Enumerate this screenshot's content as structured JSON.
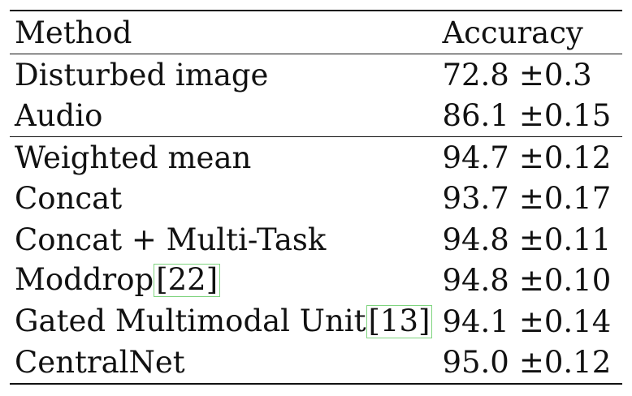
{
  "table": {
    "headers": {
      "method": "Method",
      "accuracy": "Accuracy"
    },
    "groups": [
      {
        "rows": [
          {
            "method": "Disturbed image",
            "citation": "",
            "mean": "72.8",
            "std": "±0.3",
            "bold": false
          },
          {
            "method": "Audio",
            "citation": "",
            "mean": "86.1",
            "std": "±0.15",
            "bold": false
          }
        ]
      },
      {
        "rows": [
          {
            "method": "Weighted mean",
            "citation": "",
            "mean": "94.7",
            "std": "±0.12",
            "bold": false
          },
          {
            "method": "Concat",
            "citation": "",
            "mean": "93.7",
            "std": "±0.17",
            "bold": false
          },
          {
            "method": "Concat + Multi-Task",
            "citation": "",
            "mean": "94.8",
            "std": "±0.11",
            "bold": false
          },
          {
            "method": "Moddrop",
            "citation": "[22]",
            "mean": "94.8",
            "std": "±0.10",
            "bold": false
          },
          {
            "method": "Gated Multimodal Unit",
            "citation": "[13]",
            "mean": "94.1",
            "std": "±0.14",
            "bold": false
          },
          {
            "method": "CentralNet",
            "citation": "",
            "mean": "95.0",
            "std": "±0.12",
            "bold": true
          }
        ]
      }
    ],
    "colors": {
      "rule": "#111111",
      "citation_box": "#7fd47f"
    }
  }
}
